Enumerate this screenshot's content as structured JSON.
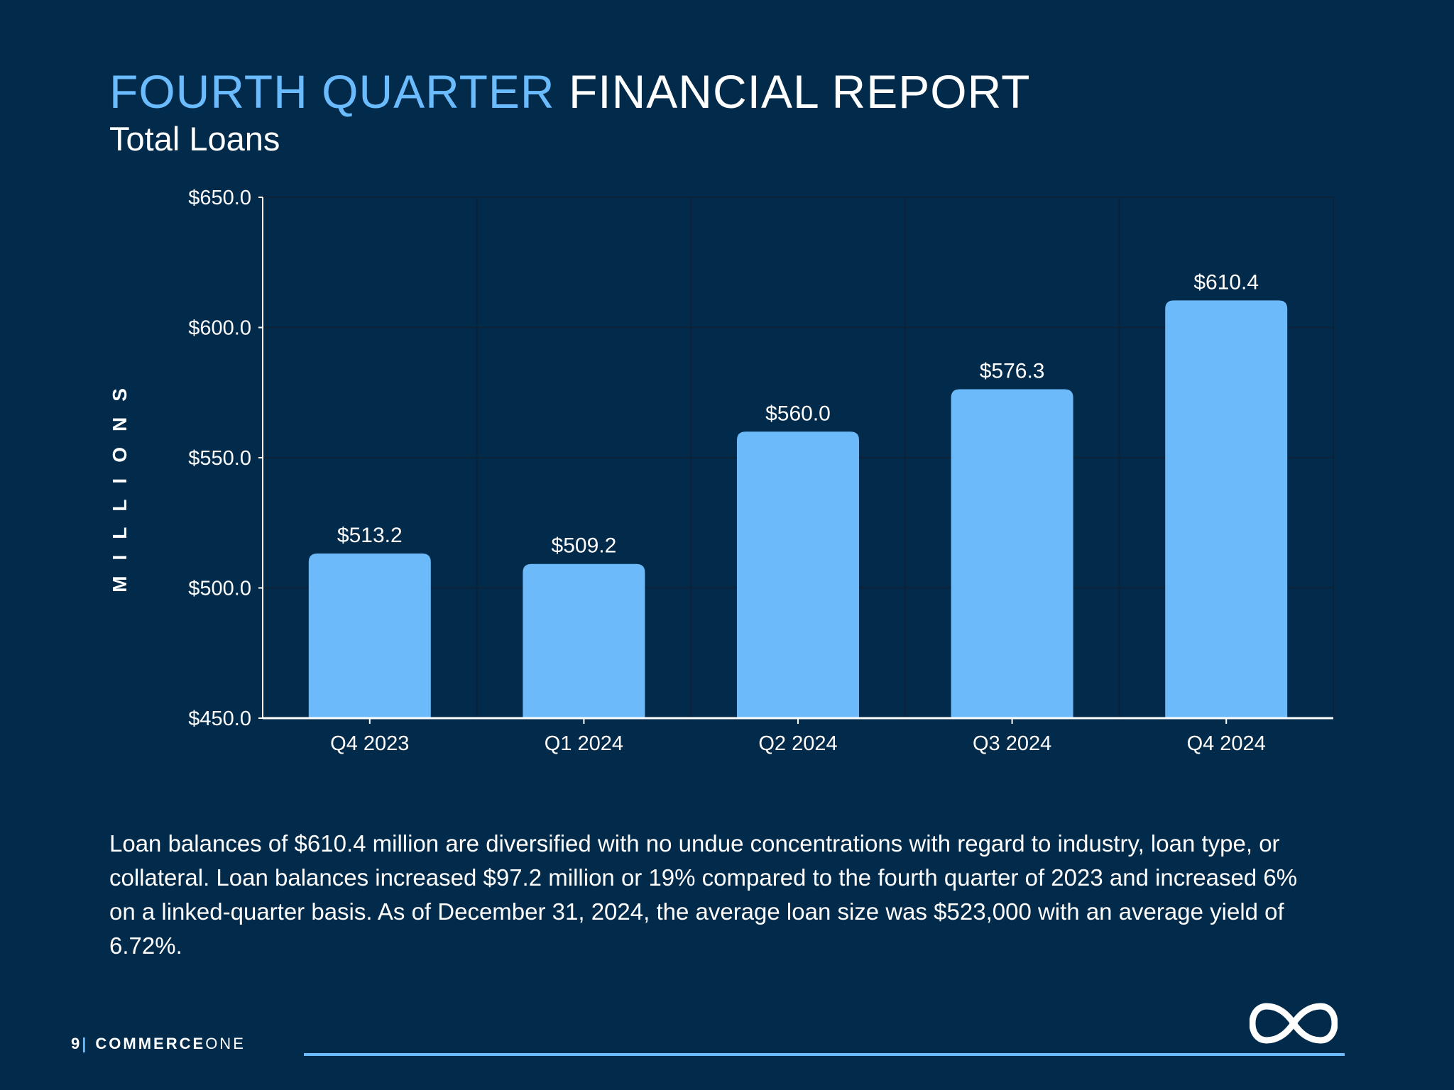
{
  "header": {
    "title_accent": "FOURTH QUARTER",
    "title_rest": "FINANCIAL REPORT",
    "subtitle": "Total Loans"
  },
  "colors": {
    "background": "#022a4a",
    "accent": "#6bbcff",
    "bar": "#6dbafa",
    "text": "#ffffff"
  },
  "chart_data": {
    "type": "bar",
    "categories": [
      "Q4 2023",
      "Q1 2024",
      "Q2 2024",
      "Q3 2024",
      "Q4 2024"
    ],
    "values": [
      513.2,
      509.2,
      560.0,
      576.3,
      610.4
    ],
    "data_labels": [
      "$513.2",
      "$509.2",
      "$560.0",
      "$576.3",
      "$610.4"
    ],
    "ylabel": "MILLIONS",
    "ylim": [
      450,
      650
    ],
    "yticks": [
      450,
      500,
      550,
      600,
      650
    ],
    "ytick_labels": [
      "$450.0",
      "$500.0",
      "$550.0",
      "$600.0",
      "$650.0"
    ],
    "grid": true
  },
  "description": "Loan balances of $610.4 million are diversified with no undue concentrations with regard to industry, loan type, or collateral. Loan balances increased $97.2 million or 19% compared to the fourth quarter of 2023 and increased 6% on a linked-quarter basis. As of December 31, 2024, the average loan size was $523,000 with an average yield of 6.72%.",
  "footer": {
    "page_number": "9",
    "separator": "|",
    "brand_bold": "COMMERCE",
    "brand_light": "ONE",
    "logo_icon": "infinity-icon"
  }
}
